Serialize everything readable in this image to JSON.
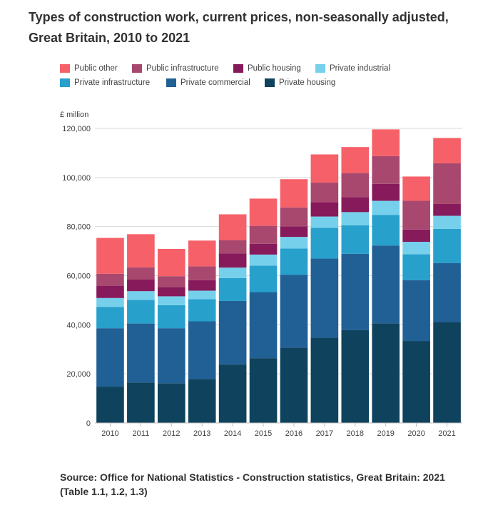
{
  "title": "Types of construction work, current prices, non-seasonally adjusted, Great Britain, 2010 to 2021",
  "source": "Source: Office for National Statistics - Construction statistics, Great Britain: 2021 (Table 1.1, 1.2, 1.3)",
  "chart_data": {
    "type": "bar",
    "stacked": true,
    "title": "Types of construction work, current prices, non-seasonally adjusted, Great Britain, 2010 to 2021",
    "ylabel": "£ million",
    "xlabel": "",
    "ylim": [
      0,
      120000
    ],
    "yticks": [
      0,
      20000,
      40000,
      60000,
      80000,
      100000,
      120000
    ],
    "ytick_labels": [
      "0",
      "20,000",
      "40,000",
      "60,000",
      "80,000",
      "100,000",
      "120,000"
    ],
    "grid": true,
    "legend_position": "top",
    "categories": [
      "2010",
      "2011",
      "2012",
      "2013",
      "2014",
      "2015",
      "2016",
      "2017",
      "2018",
      "2019",
      "2020",
      "2021"
    ],
    "legend_order": [
      "Public other",
      "Public infrastructure",
      "Public housing",
      "Private industrial",
      "Private infrastructure",
      "Private commercial",
      "Private housing"
    ],
    "series": [
      {
        "name": "Private housing",
        "color": "#0f425c",
        "values": [
          14800,
          16500,
          16200,
          17900,
          23800,
          26400,
          30700,
          34700,
          37800,
          40600,
          33400,
          41100
        ]
      },
      {
        "name": "Private commercial",
        "color": "#206095",
        "values": [
          23800,
          24000,
          22400,
          23500,
          25900,
          26900,
          29700,
          32300,
          31100,
          31700,
          24800,
          24000
        ]
      },
      {
        "name": "Private infrastructure",
        "color": "#27a0cc",
        "values": [
          8700,
          9600,
          9400,
          9000,
          9300,
          10800,
          10700,
          12500,
          11600,
          12400,
          10500,
          14000
        ]
      },
      {
        "name": "Private industrial",
        "color": "#76d0eb",
        "values": [
          3600,
          3600,
          3600,
          3500,
          4300,
          4500,
          4700,
          4600,
          5400,
          5800,
          5100,
          5300
        ]
      },
      {
        "name": "Public housing",
        "color": "#871a5b",
        "values": [
          5000,
          4700,
          3800,
          4300,
          5800,
          4400,
          4300,
          5800,
          6100,
          6900,
          5000,
          4900
        ]
      },
      {
        "name": "Public infrastructure",
        "color": "#a8486e",
        "values": [
          4900,
          5000,
          4400,
          5600,
          5400,
          7300,
          7700,
          8000,
          9800,
          11300,
          11700,
          16500
        ]
      },
      {
        "name": "Public other",
        "color": "#f66068",
        "values": [
          14600,
          13500,
          11100,
          10500,
          10500,
          11100,
          11500,
          11500,
          10600,
          10900,
          9900,
          10300
        ]
      }
    ]
  }
}
